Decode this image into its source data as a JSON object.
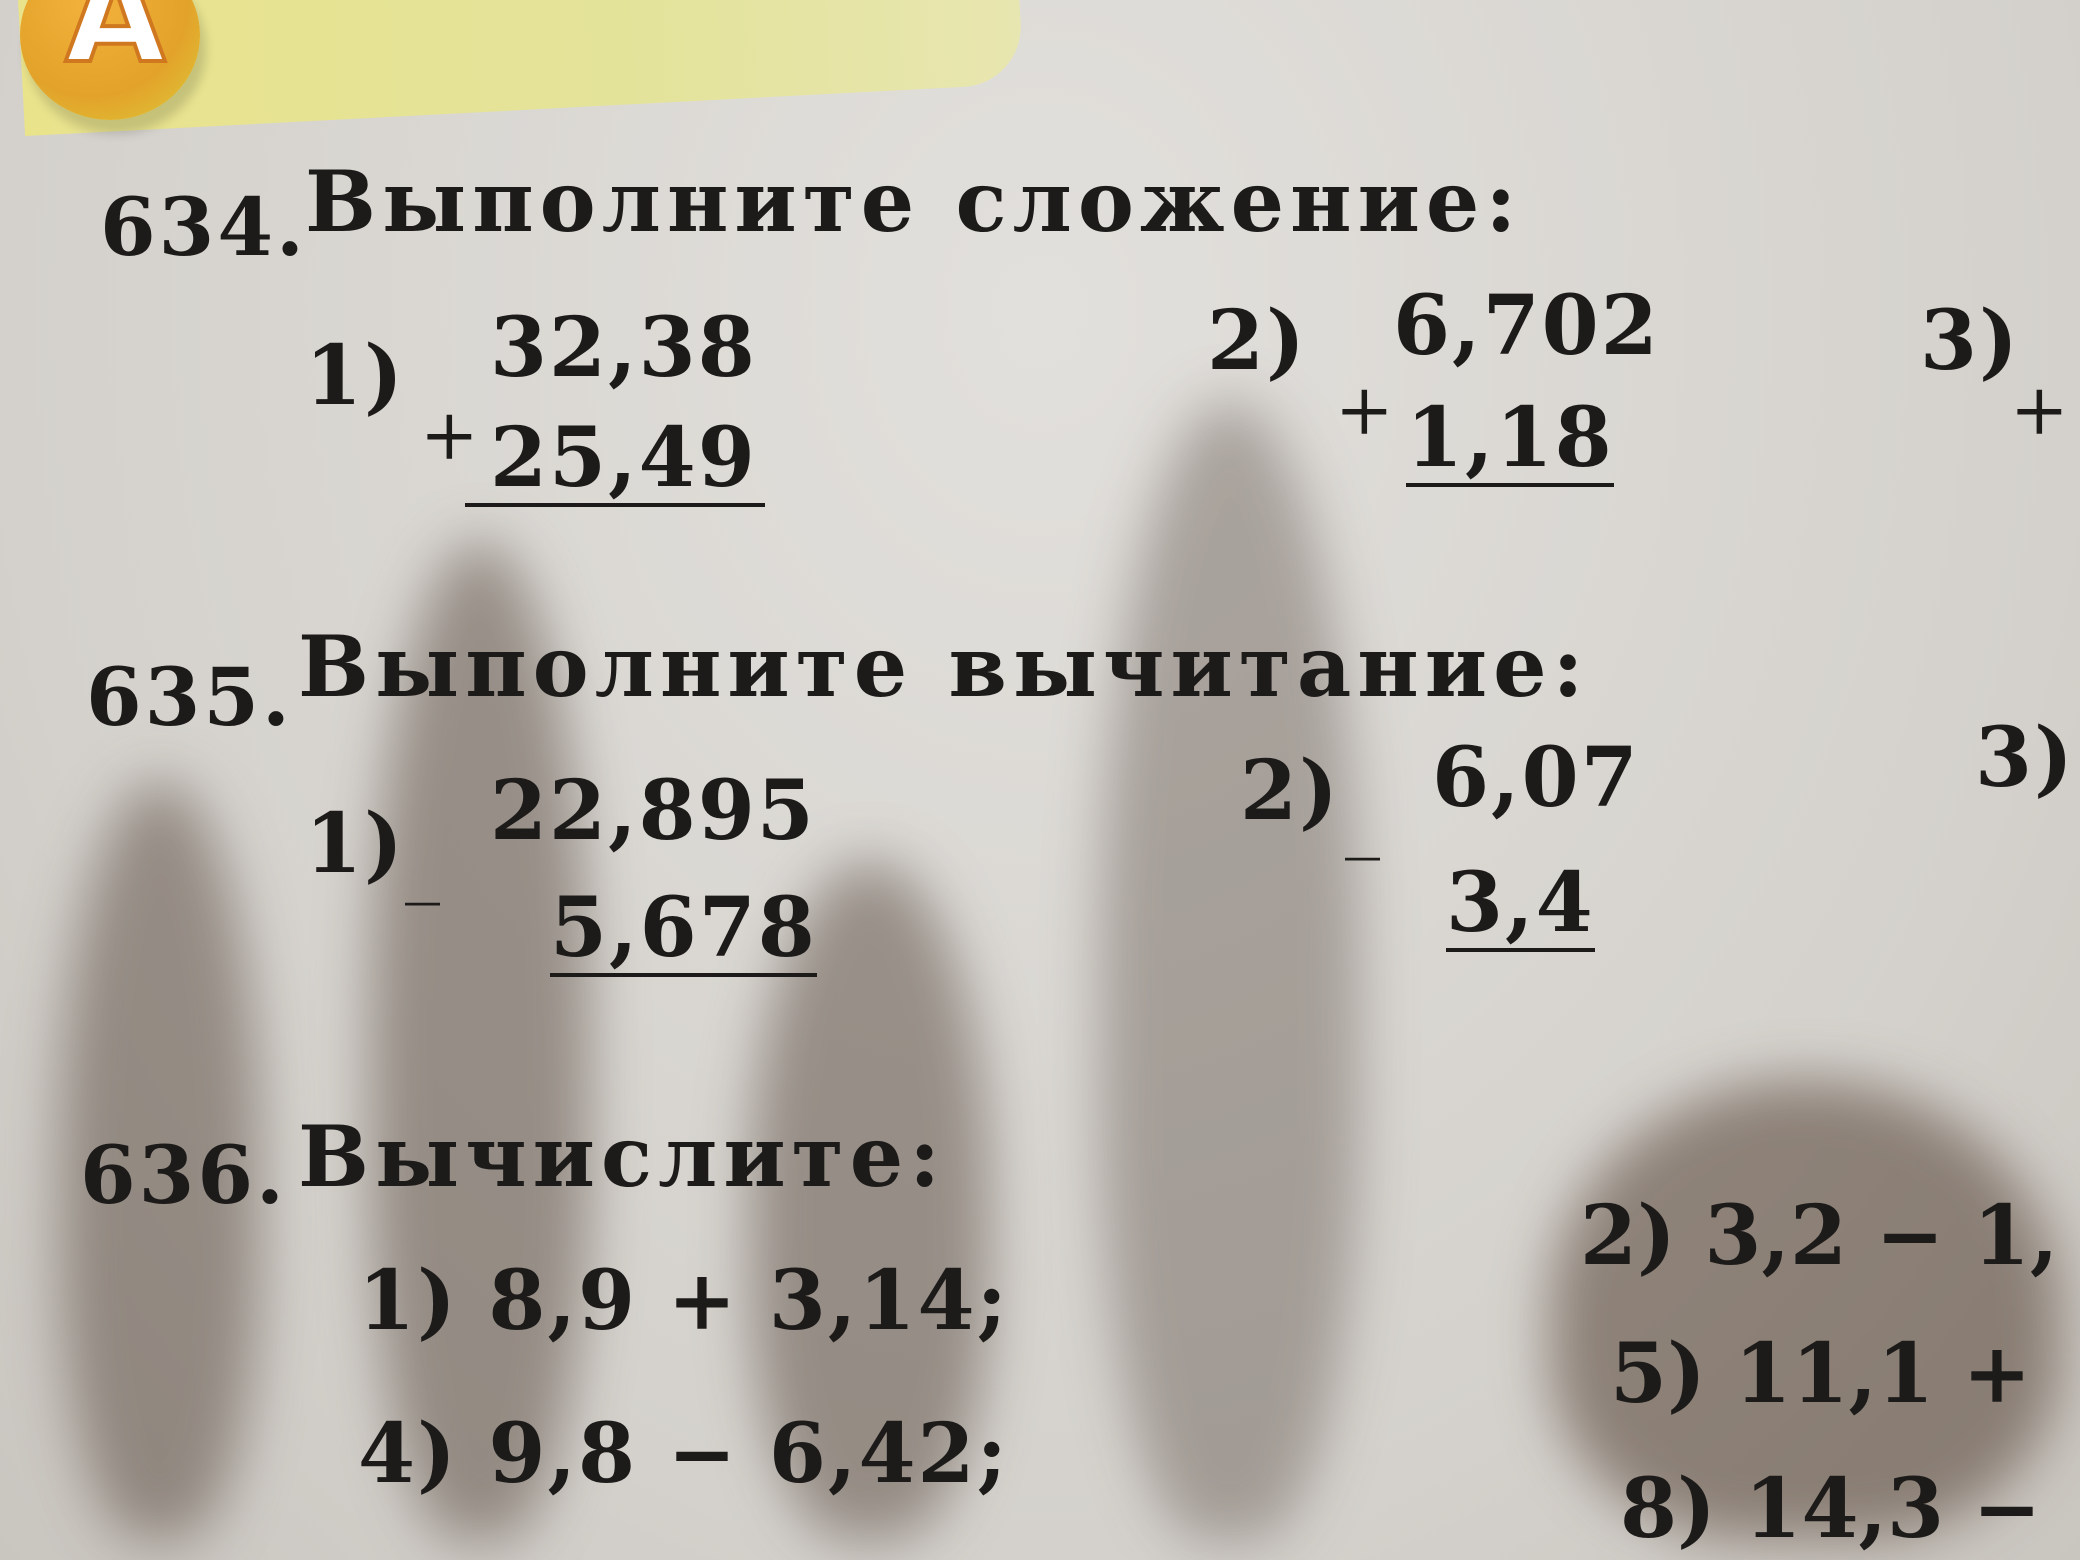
{
  "header": {
    "badge_letter": "A"
  },
  "exercises": [
    {
      "number": "634.",
      "title": "Выполните сложение:",
      "items": [
        {
          "label": "1)",
          "operator": "+",
          "top": "32,38",
          "bottom": "25,49"
        },
        {
          "label": "2)",
          "operator": "+",
          "top": "6,702",
          "bottom": "1,18"
        },
        {
          "label": "3)",
          "operator": "+"
        }
      ]
    },
    {
      "number": "635.",
      "title": "Выполните вычитание:",
      "items": [
        {
          "label": "1)",
          "operator": "_",
          "top": "22,895",
          "bottom": "5,678"
        },
        {
          "label": "2)",
          "operator": "_",
          "top": "6,07",
          "bottom": "3,4"
        },
        {
          "label": "3)"
        }
      ]
    },
    {
      "number": "636.",
      "title": "Вычислите:",
      "items": [
        {
          "text": "1) 8,9 + 3,14;"
        },
        {
          "text": "2) 3,2 − 1,"
        },
        {
          "text": "4) 9,8 − 6,42;"
        },
        {
          "text": "5) 11,1 +"
        },
        {
          "text": "8) 14,3 −"
        }
      ]
    }
  ]
}
